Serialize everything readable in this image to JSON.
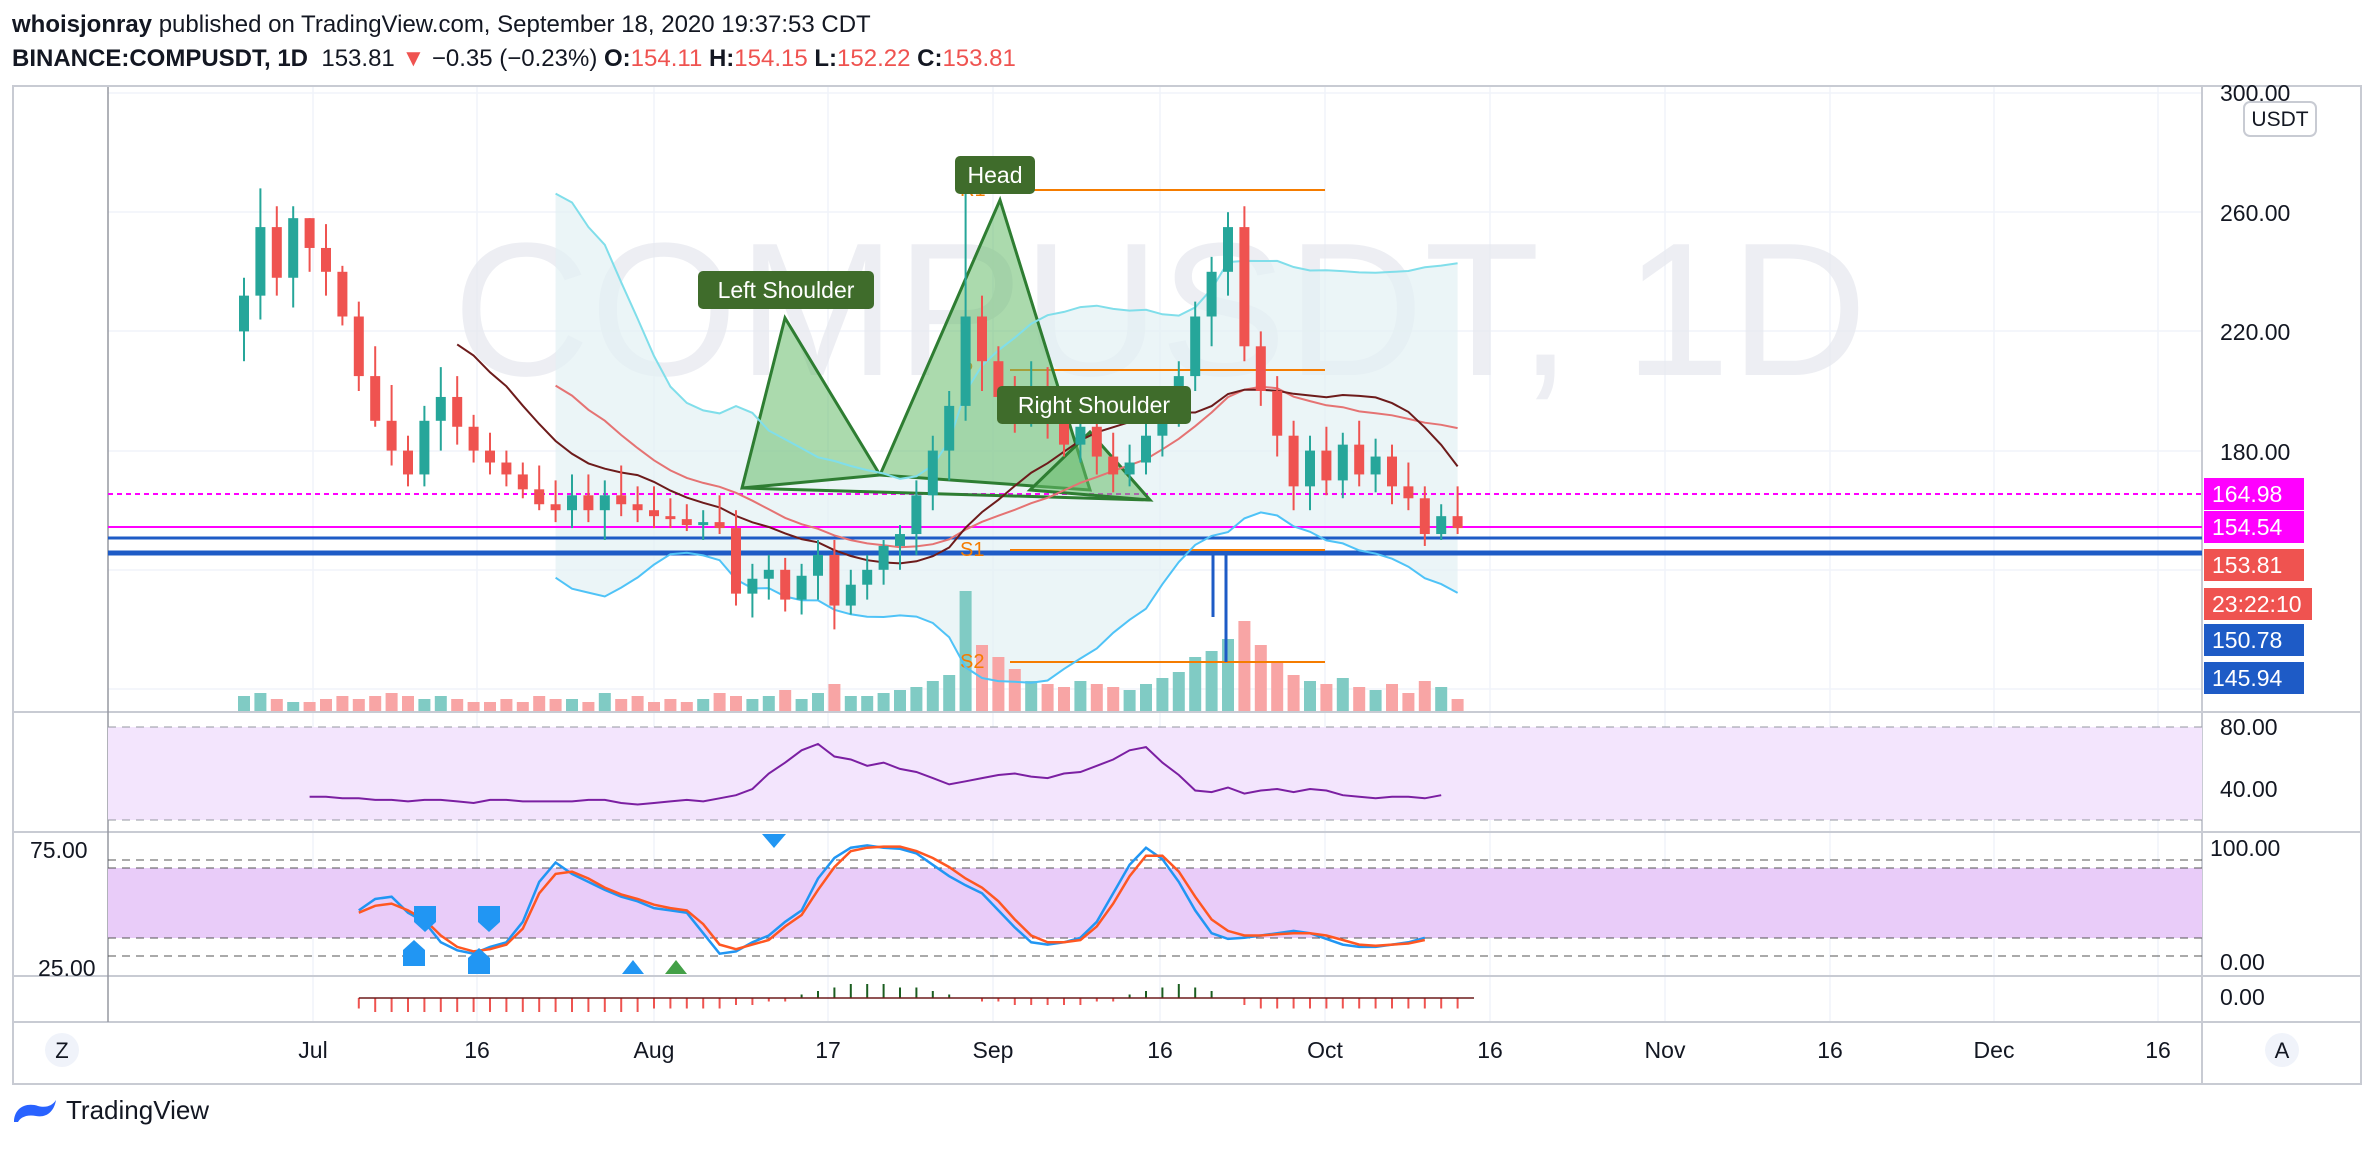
{
  "header": {
    "author": "whoisjonray",
    "published_text": "published on TradingView.com, September 18, 2020 19:37:53 CDT",
    "symbol": "BINANCE:COMPUSDT, 1D",
    "last": "153.81",
    "change": "−0.35 (−0.23%)",
    "o_label": "O:",
    "o": "154.11",
    "h_label": "H:",
    "h": "154.15",
    "l_label": "L:",
    "l": "152.22",
    "c_label": "C:",
    "c": "153.81"
  },
  "watermark": "COMPUSDT, 1D",
  "currency": "USDT",
  "footer": {
    "brand": "TradingView"
  },
  "buttons": {
    "left": "Z",
    "right": "A"
  },
  "annotations": {
    "left_shoulder": "Left Shoulder",
    "head": "Head",
    "right_shoulder": "Right Shoulder",
    "r1": "R1",
    "p": "P",
    "s1": "S1",
    "s2": "S2"
  },
  "price_labels": [
    {
      "value": "164.98",
      "color": "#ff00ff"
    },
    {
      "value": "154.54",
      "color": "#ff00ff"
    },
    {
      "value": "153.81",
      "color": "#ef5350"
    },
    {
      "value": "23:22:10",
      "color": "#ef5350"
    },
    {
      "value": "150.78",
      "color": "#1e5bc6"
    },
    {
      "value": "145.94",
      "color": "#1e5bc6"
    }
  ],
  "price_axis_ticks": [
    "300.00",
    "260.00",
    "220.00",
    "180.00"
  ],
  "rsi_axis_ticks": [
    "80.00",
    "40.00"
  ],
  "stoch_axis_ticks": [
    "100.00",
    "0.00"
  ],
  "stoch_left_ticks": [
    "75.00",
    "25.00"
  ],
  "macd_axis_ticks": [
    "0.00"
  ],
  "time_axis": [
    "Jul",
    "16",
    "Aug",
    "17",
    "Sep",
    "16",
    "Oct",
    "16",
    "Nov",
    "16",
    "Dec",
    "16"
  ],
  "chart_data": {
    "type": "candlestick",
    "title": "BINANCE:COMPUSDT, 1D",
    "start_date": "2020-06-21",
    "ylim": [
      140,
      300
    ],
    "ohlc": [
      [
        220,
        238,
        210,
        232
      ],
      [
        232,
        268,
        224,
        255
      ],
      [
        255,
        262,
        232,
        238
      ],
      [
        238,
        262,
        228,
        258
      ],
      [
        258,
        258,
        240,
        248
      ],
      [
        248,
        256,
        232,
        240
      ],
      [
        240,
        242,
        222,
        225
      ],
      [
        225,
        230,
        200,
        205
      ],
      [
        205,
        215,
        188,
        190
      ],
      [
        190,
        202,
        175,
        180
      ],
      [
        180,
        185,
        168,
        172
      ],
      [
        172,
        195,
        168,
        190
      ],
      [
        190,
        208,
        180,
        198
      ],
      [
        198,
        205,
        182,
        188
      ],
      [
        188,
        192,
        176,
        180
      ],
      [
        180,
        186,
        172,
        176
      ],
      [
        176,
        180,
        168,
        172
      ],
      [
        172,
        176,
        164,
        167
      ],
      [
        167,
        175,
        160,
        162
      ],
      [
        162,
        170,
        156,
        160
      ],
      [
        160,
        172,
        154,
        165
      ],
      [
        165,
        172,
        156,
        160
      ],
      [
        160,
        170,
        150,
        165
      ],
      [
        165,
        175,
        158,
        162
      ],
      [
        162,
        168,
        156,
        160
      ],
      [
        160,
        168,
        154,
        158
      ],
      [
        158,
        164,
        154,
        157
      ],
      [
        157,
        162,
        153,
        155
      ],
      [
        155,
        160,
        150,
        156
      ],
      [
        156,
        165,
        152,
        154
      ],
      [
        154,
        160,
        128,
        132
      ],
      [
        132,
        142,
        124,
        137
      ],
      [
        137,
        145,
        130,
        140
      ],
      [
        140,
        144,
        126,
        130
      ],
      [
        130,
        142,
        125,
        138
      ],
      [
        138,
        150,
        130,
        145
      ],
      [
        145,
        150,
        120,
        128
      ],
      [
        128,
        140,
        125,
        135
      ],
      [
        135,
        145,
        130,
        140
      ],
      [
        140,
        150,
        135,
        148
      ],
      [
        148,
        155,
        140,
        152
      ],
      [
        152,
        170,
        145,
        165
      ],
      [
        165,
        185,
        160,
        180
      ],
      [
        180,
        200,
        170,
        195
      ],
      [
        195,
        268,
        190,
        225
      ],
      [
        225,
        232,
        200,
        210
      ],
      [
        210,
        215,
        190,
        198
      ],
      [
        198,
        205,
        186,
        195
      ],
      [
        195,
        210,
        188,
        200
      ],
      [
        200,
        208,
        184,
        190
      ],
      [
        190,
        195,
        178,
        182
      ],
      [
        182,
        196,
        176,
        188
      ],
      [
        188,
        195,
        172,
        178
      ],
      [
        178,
        186,
        166,
        172
      ],
      [
        172,
        182,
        168,
        176
      ],
      [
        176,
        190,
        172,
        185
      ],
      [
        185,
        200,
        178,
        195
      ],
      [
        195,
        210,
        188,
        205
      ],
      [
        205,
        230,
        200,
        225
      ],
      [
        225,
        245,
        215,
        240
      ],
      [
        240,
        260,
        232,
        255
      ],
      [
        255,
        262,
        210,
        215
      ],
      [
        215,
        220,
        195,
        200
      ],
      [
        200,
        205,
        178,
        185
      ],
      [
        185,
        190,
        160,
        168
      ],
      [
        168,
        185,
        160,
        180
      ],
      [
        180,
        188,
        165,
        170
      ],
      [
        170,
        186,
        164,
        182
      ],
      [
        182,
        190,
        168,
        172
      ],
      [
        172,
        184,
        166,
        178
      ],
      [
        178,
        182,
        162,
        168
      ],
      [
        168,
        176,
        160,
        164
      ],
      [
        164,
        168,
        148,
        152
      ],
      [
        152,
        162,
        150,
        158
      ],
      [
        158,
        168,
        152,
        154
      ]
    ],
    "volume": [
      5,
      6,
      4,
      3,
      3,
      4,
      5,
      4,
      5,
      6,
      5,
      4,
      5,
      4,
      3,
      3,
      4,
      3,
      5,
      4,
      4,
      3,
      6,
      4,
      5,
      3,
      4,
      3,
      4,
      6,
      5,
      4,
      5,
      7,
      4,
      6,
      9,
      5,
      5,
      6,
      7,
      8,
      10,
      12,
      40,
      22,
      18,
      14,
      10,
      9,
      8,
      10,
      9,
      8,
      7,
      9,
      11,
      13,
      18,
      20,
      24,
      30,
      22,
      16,
      12,
      10,
      9,
      11,
      8,
      7,
      9,
      6,
      10,
      8,
      4
    ],
    "series": [
      {
        "name": "RSI",
        "values": [
          40,
          40,
          39,
          39,
          38,
          38,
          37,
          38,
          38,
          37,
          36,
          38,
          38,
          37,
          37,
          37,
          37,
          38,
          38,
          36,
          35,
          36,
          37,
          38,
          37,
          39,
          41,
          45,
          55,
          62,
          70,
          74,
          66,
          64,
          60,
          62,
          58,
          56,
          52,
          48,
          50,
          52,
          54,
          55,
          53,
          52,
          55,
          56,
          60,
          64,
          70,
          72,
          62,
          54,
          44,
          43,
          46,
          42,
          44,
          45,
          43,
          45,
          44,
          41,
          40,
          39,
          40,
          40,
          39,
          41
        ]
      },
      {
        "name": "Stoch K",
        "values": [
          40,
          50,
          52,
          38,
          30,
          12,
          5,
          2,
          8,
          12,
          30,
          65,
          82,
          72,
          65,
          58,
          52,
          48,
          42,
          40,
          38,
          20,
          2,
          4,
          12,
          18,
          30,
          40,
          68,
          86,
          95,
          97,
          95,
          94,
          90,
          80,
          70,
          62,
          55,
          40,
          25,
          12,
          10,
          12,
          16,
          30,
          55,
          80,
          95,
          85,
          65,
          40,
          20,
          15,
          16,
          18,
          20,
          22,
          20,
          15,
          10,
          8,
          8,
          10,
          12,
          16
        ]
      },
      {
        "name": "Stoch D",
        "values": [
          38,
          44,
          46,
          40,
          32,
          18,
          8,
          4,
          6,
          10,
          24,
          55,
          72,
          74,
          68,
          60,
          54,
          50,
          45,
          42,
          40,
          28,
          10,
          6,
          10,
          14,
          26,
          36,
          58,
          78,
          92,
          95,
          96,
          96,
          92,
          86,
          78,
          68,
          60,
          48,
          32,
          18,
          12,
          12,
          14,
          26,
          46,
          70,
          88,
          88,
          74,
          52,
          32,
          22,
          18,
          18,
          19,
          20,
          20,
          18,
          14,
          10,
          9,
          10,
          11,
          14
        ]
      },
      {
        "name": "MACD Hist",
        "values": [
          -3,
          -4,
          -4,
          -4,
          -4,
          -4,
          -4,
          -4,
          -4,
          -4,
          -4,
          -4,
          -4,
          -4,
          -4,
          -4,
          -4,
          -4,
          -3,
          -3,
          -3,
          -3,
          -3,
          -2,
          -2,
          -1,
          -1,
          1,
          2,
          3,
          4,
          4,
          4,
          3,
          3,
          2,
          1,
          0,
          -1,
          -1,
          -2,
          -2,
          -2,
          -2,
          -2,
          -1,
          -1,
          1,
          2,
          3,
          4,
          3,
          2,
          0,
          -2,
          -3,
          -3,
          -3,
          -3,
          -3,
          -3,
          -3,
          -3,
          -3,
          -3,
          -3,
          -3,
          -3
        ]
      }
    ],
    "levels": {
      "R1": 268,
      "P": 208,
      "S1": 158,
      "S2": 137
    }
  }
}
